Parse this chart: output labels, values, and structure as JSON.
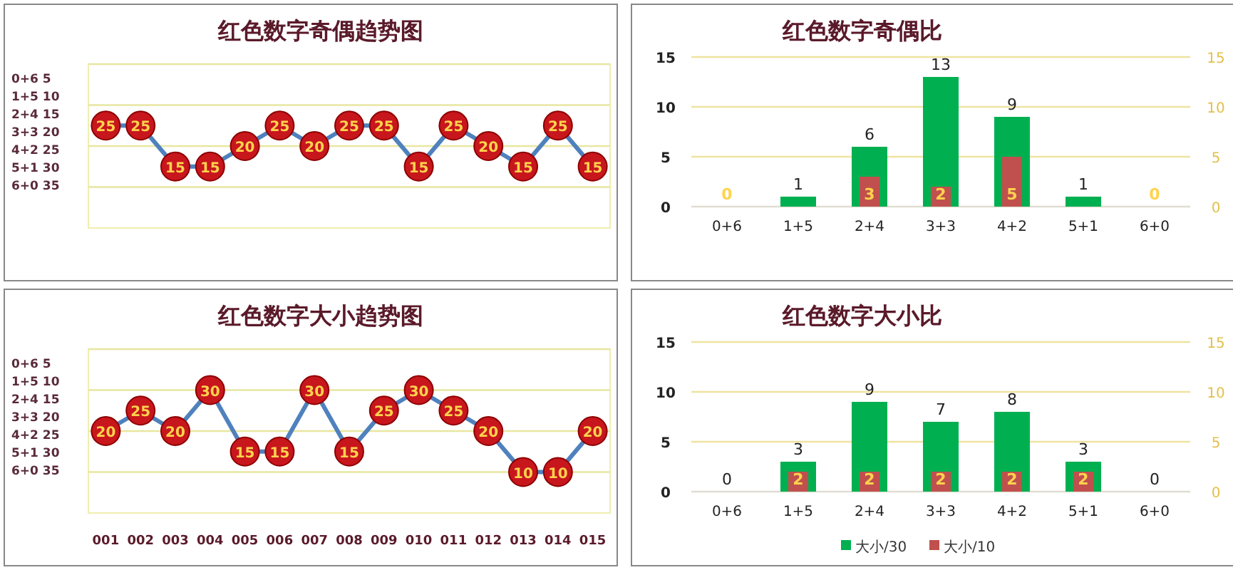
{
  "chart_data": [
    {
      "type": "line",
      "title": "红色数字奇偶趋势图",
      "categories": [
        null,
        null,
        null,
        null,
        null,
        null,
        null,
        null,
        null,
        null,
        null,
        null,
        null,
        null,
        null
      ],
      "values": [
        25,
        25,
        15,
        15,
        20,
        25,
        20,
        25,
        25,
        15,
        25,
        20,
        15,
        25,
        15
      ],
      "color": "#4f81bd",
      "ylim": [
        0,
        40
      ],
      "yticks": [
        {
          "value": 10,
          "label": null
        },
        {
          "value": 20,
          "label": null
        },
        {
          "value": 30,
          "label": null
        },
        {
          "value": 40,
          "label": null
        }
      ],
      "grid": "y",
      "marker": "circle",
      "data_labels": true,
      "annotations": [
        "0+6 5",
        "1+5 10",
        "2+4 15",
        "3+3 20",
        "4+2 25",
        "5+1 30",
        "6+0 35"
      ]
    },
    {
      "type": "bar",
      "title": "红色数字奇偶比",
      "categories": [
        "0+6",
        "1+5",
        "2+4",
        "3+3",
        "4+2",
        "5+1",
        "6+0"
      ],
      "series": [
        {
          "color": "#00b050",
          "values": [
            0,
            1,
            6,
            13,
            9,
            1,
            0
          ],
          "value_labels": [
            null,
            "1",
            "6",
            "13",
            "9",
            "1",
            null
          ]
        },
        {
          "color": "#c0504d",
          "values": [
            0,
            0,
            3,
            2,
            5,
            0,
            0
          ],
          "axis": "y2",
          "value_labels": [
            "0",
            null,
            "3",
            "2",
            "5",
            null,
            "0"
          ]
        }
      ],
      "ylim": [
        0,
        15
      ],
      "yticks": [
        0,
        5,
        10,
        15
      ],
      "y2lim": [
        0,
        15
      ],
      "y2ticks": [
        0,
        5,
        10,
        15
      ],
      "grid": "y"
    },
    {
      "type": "line",
      "title": "红色数字大小趋势图",
      "categories": [
        "001",
        "002",
        "003",
        "004",
        "005",
        "006",
        "007",
        "008",
        "009",
        "010",
        "011",
        "012",
        "013",
        "014",
        "015"
      ],
      "values": [
        20,
        25,
        20,
        30,
        15,
        15,
        30,
        15,
        25,
        30,
        25,
        20,
        10,
        10,
        20
      ],
      "color": "#4f81bd",
      "ylim": [
        0,
        40
      ],
      "yticks": [
        {
          "value": 10,
          "label": null
        },
        {
          "value": 20,
          "label": null
        },
        {
          "value": 30,
          "label": null
        },
        {
          "value": 40,
          "label": null
        }
      ],
      "grid": "y",
      "marker": "circle",
      "data_labels": true,
      "annotations": [
        "0+6 5",
        "1+5 10",
        "2+4 15",
        "3+3 20",
        "4+2 25",
        "5+1 30",
        "6+0 35"
      ]
    },
    {
      "type": "bar",
      "title": "红色数字大小比",
      "categories": [
        "0+6",
        "1+5",
        "2+4",
        "3+3",
        "4+2",
        "5+1",
        "6+0"
      ],
      "series": [
        {
          "name": "大小/30",
          "color": "#00b050",
          "values": [
            0,
            3,
            9,
            7,
            8,
            3,
            0
          ],
          "value_labels": [
            "0",
            "3",
            "9",
            "7",
            "8",
            "3",
            "0"
          ]
        },
        {
          "name": "大小/10",
          "color": "#c0504d",
          "values": [
            0,
            2,
            2,
            2,
            2,
            2,
            0
          ],
          "axis": "y2",
          "value_labels": [
            null,
            "2",
            "2",
            "2",
            "2",
            "2",
            null
          ]
        }
      ],
      "ylim": [
        0,
        15
      ],
      "yticks": [
        0,
        5,
        10,
        15
      ],
      "y2lim": [
        0,
        15
      ],
      "y2ticks": [
        0,
        5,
        10,
        15
      ],
      "grid": "y",
      "legend": "bottom"
    }
  ]
}
